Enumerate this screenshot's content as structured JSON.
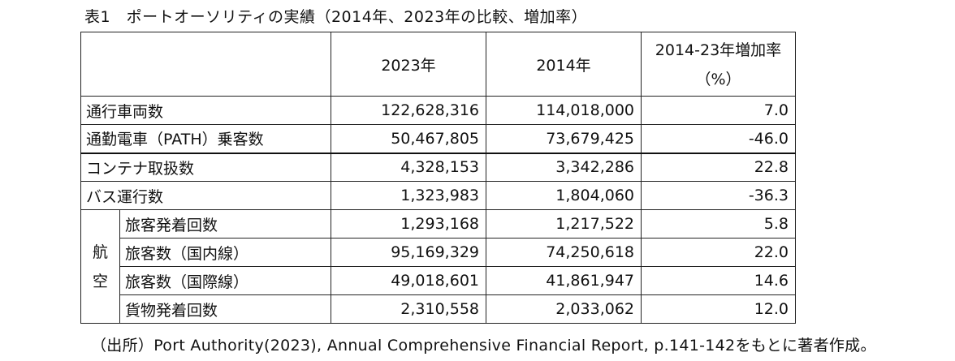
{
  "caption": "表1　ポートオーソリティの実績（2014年、2023年の比較、増加率）",
  "table": {
    "headers": {
      "col1": "",
      "col2": "2023年",
      "col3": "2014年",
      "col4_line1": "2014-23年増加率",
      "col4_line2": "（%）"
    },
    "group_label_line1": "航",
    "group_label_line2": "空",
    "rows": [
      {
        "label": "通行車両数",
        "v2023": "122,628,316",
        "v2014": "114,018,000",
        "rate": "7.0"
      },
      {
        "label": "通勤電車（PATH）乗客数",
        "v2023": "50,467,805",
        "v2014": "73,679,425",
        "rate": "-46.0"
      },
      {
        "label": "コンテナ取扱数",
        "v2023": "4,328,153",
        "v2014": "3,342,286",
        "rate": "22.8"
      },
      {
        "label": "バス運行数",
        "v2023": "1,323,983",
        "v2014": "1,804,060",
        "rate": "-36.3"
      },
      {
        "label": "旅客発着回数",
        "v2023": "1,293,168",
        "v2014": "1,217,522",
        "rate": "5.8"
      },
      {
        "label": "旅客数（国内線）",
        "v2023": "95,169,329",
        "v2014": "74,250,618",
        "rate": "22.0"
      },
      {
        "label": "旅客数（国際線）",
        "v2023": "49,018,601",
        "v2014": "41,861,947",
        "rate": "14.6"
      },
      {
        "label": "貨物発着回数",
        "v2023": "2,310,558",
        "v2014": "2,033,062",
        "rate": "12.0"
      }
    ]
  },
  "source": "（出所）Port Authority(2023), Annual Comprehensive Financial Report, p.141-142をもとに著者作成。"
}
